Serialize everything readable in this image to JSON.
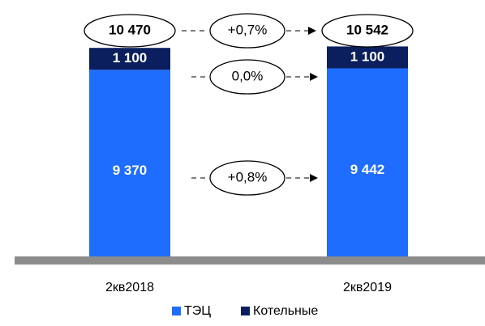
{
  "chart_data": {
    "type": "stacked_bar",
    "categories": [
      "2кв2018",
      "2кв2019"
    ],
    "series": [
      {
        "name": "ТЭЦ",
        "color": "#1f6dff",
        "values": [
          9370,
          9442
        ],
        "value_labels": [
          "9 370",
          "9 442"
        ]
      },
      {
        "name": "Котельные",
        "color": "#0b1f5e",
        "values": [
          1100,
          1100
        ],
        "value_labels": [
          "1 100",
          "1 100"
        ]
      }
    ],
    "totals": [
      10470,
      10542
    ],
    "total_labels": [
      "10 470",
      "10 542"
    ],
    "annotations": [
      "+0,7%",
      "0,0%",
      "+0,8%"
    ],
    "ylim": [
      0,
      10600
    ],
    "legend": "bottom"
  }
}
